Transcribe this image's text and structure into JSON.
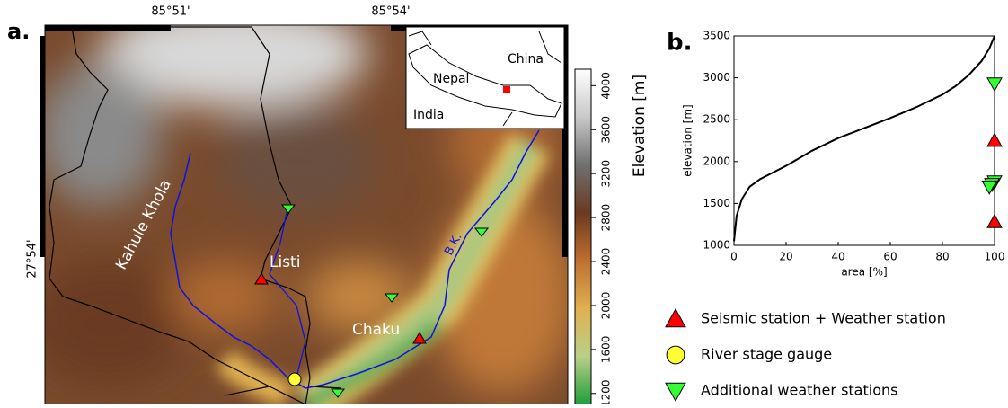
{
  "map": {
    "panel_label": "a.",
    "lon_labels": [
      "85°51'",
      "85°54'"
    ],
    "lat_label": "27°54'",
    "place_labels": [
      "Kahule Khola",
      "Listi",
      "Chaku",
      "B.K."
    ],
    "inset_labels": [
      "China",
      "Nepal",
      "India"
    ],
    "colorbar": {
      "label": "Elevation [m]",
      "clim": [
        1100,
        4150
      ],
      "ticks": [
        1200,
        1600,
        2000,
        2400,
        2800,
        3200,
        3600,
        4000
      ],
      "colors": [
        "#1e9e3a",
        "#b8d088",
        "#e0b050",
        "#c07030",
        "#6a3a20",
        "#707070",
        "#c8c8c8",
        "#ffffff"
      ]
    }
  },
  "chart_data": {
    "type": "line",
    "panel_label": "b.",
    "x_label": "area [%]",
    "y_label": "elevation [m]",
    "x": [
      0,
      1,
      3,
      6,
      10,
      20,
      30,
      40,
      50,
      60,
      70,
      80,
      85,
      90,
      95,
      98,
      100
    ],
    "values": [
      1050,
      1350,
      1550,
      1700,
      1790,
      1950,
      2130,
      2280,
      2400,
      2520,
      2650,
      2800,
      2900,
      3030,
      3200,
      3350,
      3500
    ],
    "color": "#000000",
    "xlim": [
      0,
      100
    ],
    "ylim": [
      1000,
      3500
    ],
    "xticks": [
      0,
      20,
      40,
      60,
      80,
      100
    ],
    "yticks": [
      1000,
      1500,
      2000,
      2500,
      3000,
      3500
    ],
    "markers": [
      {
        "x": 100,
        "y": 2250,
        "kind": 0
      },
      {
        "x": 100,
        "y": 1280,
        "kind": 0
      },
      {
        "x": 100,
        "y": 2930,
        "kind": 2
      },
      {
        "x": 100,
        "y": 1760,
        "kind": 2
      },
      {
        "x": 99,
        "y": 1730,
        "kind": 2
      },
      {
        "x": 98,
        "y": 1700,
        "kind": 2
      }
    ],
    "legend": [
      {
        "label": "Seismic station + Weather station",
        "color": "#ff0000",
        "shape": "triangle-up"
      },
      {
        "label": "River stage gauge",
        "color": "#ffff33",
        "shape": "circle"
      },
      {
        "label": "Additional weather stations",
        "color": "#33ff33",
        "shape": "triangle-down"
      }
    ]
  }
}
